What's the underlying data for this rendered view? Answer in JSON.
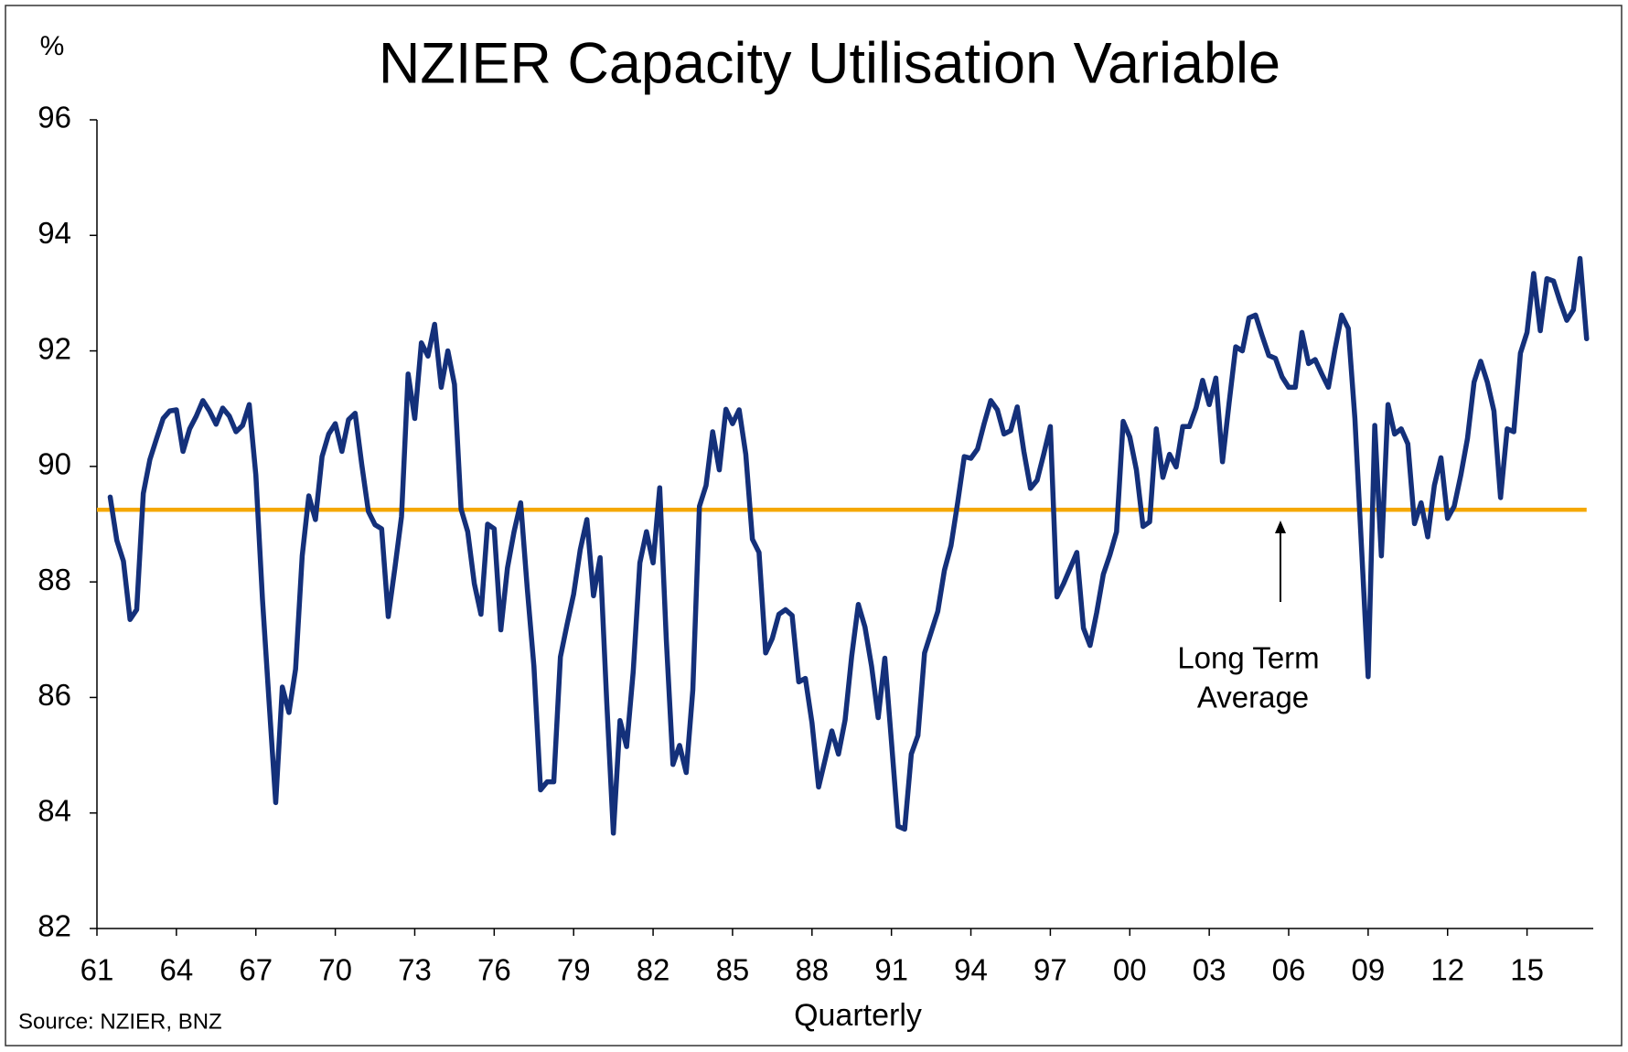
{
  "chart_data": {
    "type": "line",
    "title": "NZIER Capacity Utilisation Variable",
    "y_unit": "%",
    "x_label": "Quarterly",
    "source": "Source: NZIER, BNZ",
    "annotation": [
      "Long Term",
      "Average"
    ],
    "reference_line": {
      "value": 89.25,
      "color": "#f5a800"
    },
    "xlim": [
      1961,
      2017.5
    ],
    "ylim": [
      82,
      96
    ],
    "yticks": [
      82,
      84,
      86,
      88,
      90,
      92,
      94,
      96
    ],
    "xticks": [
      {
        "value": 1961,
        "label": "61"
      },
      {
        "value": 1964,
        "label": "64"
      },
      {
        "value": 1967,
        "label": "67"
      },
      {
        "value": 1970,
        "label": "70"
      },
      {
        "value": 1973,
        "label": "73"
      },
      {
        "value": 1976,
        "label": "76"
      },
      {
        "value": 1979,
        "label": "79"
      },
      {
        "value": 1982,
        "label": "82"
      },
      {
        "value": 1985,
        "label": "85"
      },
      {
        "value": 1988,
        "label": "88"
      },
      {
        "value": 1991,
        "label": "91"
      },
      {
        "value": 1994,
        "label": "94"
      },
      {
        "value": 1997,
        "label": "97"
      },
      {
        "value": 2000,
        "label": "00"
      },
      {
        "value": 2003,
        "label": "03"
      },
      {
        "value": 2006,
        "label": "06"
      },
      {
        "value": 2009,
        "label": "09"
      },
      {
        "value": 2012,
        "label": "12"
      },
      {
        "value": 2015,
        "label": "15"
      }
    ],
    "x": [
      1961.5,
      1961.75,
      1962,
      1962.25,
      1962.5,
      1962.75,
      1963,
      1963.25,
      1963.5,
      1963.75,
      1964,
      1964.25,
      1964.5,
      1964.75,
      1965,
      1965.25,
      1965.5,
      1965.75,
      1966,
      1966.25,
      1966.5,
      1966.75,
      1967,
      1967.25,
      1967.5,
      1967.75,
      1968,
      1968.25,
      1968.5,
      1968.75,
      1969,
      1969.25,
      1969.5,
      1969.75,
      1970,
      1970.25,
      1970.5,
      1970.75,
      1971,
      1971.25,
      1971.5,
      1971.75,
      1972,
      1972.25,
      1972.5,
      1972.75,
      1973,
      1973.25,
      1973.5,
      1973.75,
      1974,
      1974.25,
      1974.5,
      1974.75,
      1975,
      1975.25,
      1975.5,
      1975.75,
      1976,
      1976.25,
      1976.5,
      1976.75,
      1977,
      1977.25,
      1977.5,
      1977.75,
      1978,
      1978.25,
      1978.5,
      1978.75,
      1979,
      1979.25,
      1979.5,
      1979.75,
      1980,
      1980.25,
      1980.5,
      1980.75,
      1981,
      1981.25,
      1981.5,
      1981.75,
      1982,
      1982.25,
      1982.5,
      1982.75,
      1983,
      1983.25,
      1983.5,
      1983.75,
      1984,
      1984.25,
      1984.5,
      1984.75,
      1985,
      1985.25,
      1985.5,
      1985.75,
      1986,
      1986.25,
      1986.5,
      1986.75,
      1987,
      1987.25,
      1987.5,
      1987.75,
      1988,
      1988.25,
      1988.5,
      1988.75,
      1989,
      1989.25,
      1989.5,
      1989.75,
      1990,
      1990.25,
      1990.5,
      1990.75,
      1991,
      1991.25,
      1991.5,
      1991.75,
      1992,
      1992.25,
      1992.5,
      1992.75,
      1993,
      1993.25,
      1993.5,
      1993.75,
      1994,
      1994.25,
      1994.5,
      1994.75,
      1995,
      1995.25,
      1995.5,
      1995.75,
      1996,
      1996.25,
      1996.5,
      1996.75,
      1997,
      1997.25,
      1997.5,
      1997.75,
      1998,
      1998.25,
      1998.5,
      1998.75,
      1999,
      1999.25,
      1999.5,
      1999.75,
      2000,
      2000.25,
      2000.5,
      2000.75,
      2001,
      2001.25,
      2001.5,
      2001.75,
      2002,
      2002.25,
      2002.5,
      2002.75,
      2003,
      2003.25,
      2003.5,
      2003.75,
      2004,
      2004.25,
      2004.5,
      2004.75,
      2005,
      2005.25,
      2005.5,
      2005.75,
      2006,
      2006.25,
      2006.5,
      2006.75,
      2007,
      2007.25,
      2007.5,
      2007.75,
      2008,
      2008.25,
      2008.5,
      2008.75,
      2009,
      2009.25,
      2009.5,
      2009.75,
      2010,
      2010.25,
      2010.5,
      2010.75,
      2011,
      2011.25,
      2011.5,
      2011.75,
      2012,
      2012.25,
      2012.5,
      2012.75,
      2013,
      2013.25,
      2013.5,
      2013.75,
      2014,
      2014.25,
      2014.5,
      2014.75,
      2015,
      2015.25,
      2015.5,
      2015.75,
      2016,
      2016.25,
      2016.5,
      2016.75,
      2017,
      2017.25
    ],
    "series": [
      {
        "color": "#14307a",
        "values": [
          89.47,
          88.72,
          88.36,
          87.35,
          87.52,
          89.53,
          90.12,
          90.48,
          90.83,
          90.96,
          90.98,
          90.26,
          90.65,
          90.87,
          91.14,
          90.96,
          90.73,
          91.01,
          90.87,
          90.6,
          90.71,
          91.07,
          89.85,
          87.7,
          85.92,
          84.18,
          86.18,
          85.74,
          86.49,
          88.45,
          89.49,
          89.08,
          90.17,
          90.56,
          90.74,
          90.26,
          90.81,
          90.92,
          90.03,
          89.22,
          88.99,
          88.92,
          87.4,
          88.24,
          89.13,
          91.6,
          90.83,
          92.14,
          91.91,
          92.46,
          91.37,
          92.0,
          91.42,
          89.26,
          88.87,
          87.97,
          87.44,
          89.0,
          88.92,
          87.17,
          88.24,
          88.87,
          89.37,
          87.88,
          86.54,
          84.4,
          84.54,
          84.54,
          86.7,
          87.26,
          87.79,
          88.56,
          89.08,
          87.76,
          88.42,
          85.92,
          83.65,
          85.6,
          85.15,
          86.45,
          88.33,
          88.87,
          88.33,
          89.63,
          86.99,
          84.84,
          85.17,
          84.7,
          86.13,
          89.31,
          89.67,
          90.6,
          89.94,
          90.99,
          90.74,
          90.98,
          90.21,
          88.74,
          88.51,
          86.77,
          87.02,
          87.44,
          87.52,
          87.42,
          86.27,
          86.33,
          85.56,
          84.45,
          84.93,
          85.42,
          85.02,
          85.61,
          86.72,
          87.61,
          87.22,
          86.54,
          85.65,
          86.68,
          85.24,
          83.77,
          83.72,
          85.02,
          85.34,
          86.77,
          87.13,
          87.49,
          88.2,
          88.63,
          89.37,
          90.17,
          90.14,
          90.3,
          90.74,
          91.14,
          90.98,
          90.56,
          90.62,
          91.03,
          90.26,
          89.62,
          89.76,
          90.21,
          90.69,
          87.74,
          87.97,
          88.24,
          88.51,
          87.2,
          86.9,
          87.47,
          88.13,
          88.47,
          88.87,
          90.78,
          90.51,
          89.94,
          88.96,
          89.04,
          90.65,
          89.81,
          90.21,
          89.99,
          90.69,
          90.69,
          91.01,
          91.49,
          91.07,
          91.53,
          90.08,
          91.1,
          92.07,
          92.0,
          92.57,
          92.62,
          92.26,
          91.92,
          91.87,
          91.55,
          91.37,
          91.37,
          92.32,
          91.78,
          91.85,
          91.6,
          91.37,
          92.03,
          92.62,
          92.39,
          90.83,
          88.6,
          86.36,
          90.71,
          88.45,
          91.07,
          90.56,
          90.65,
          90.39,
          89.01,
          89.37,
          88.78,
          89.67,
          90.15,
          89.1,
          89.31,
          89.85,
          90.48,
          91.46,
          91.82,
          91.46,
          90.96,
          89.46,
          90.65,
          90.6,
          91.96,
          92.32,
          93.34,
          92.35,
          93.25,
          93.21,
          92.85,
          92.53,
          92.71,
          93.6,
          92.21
        ]
      }
    ]
  }
}
